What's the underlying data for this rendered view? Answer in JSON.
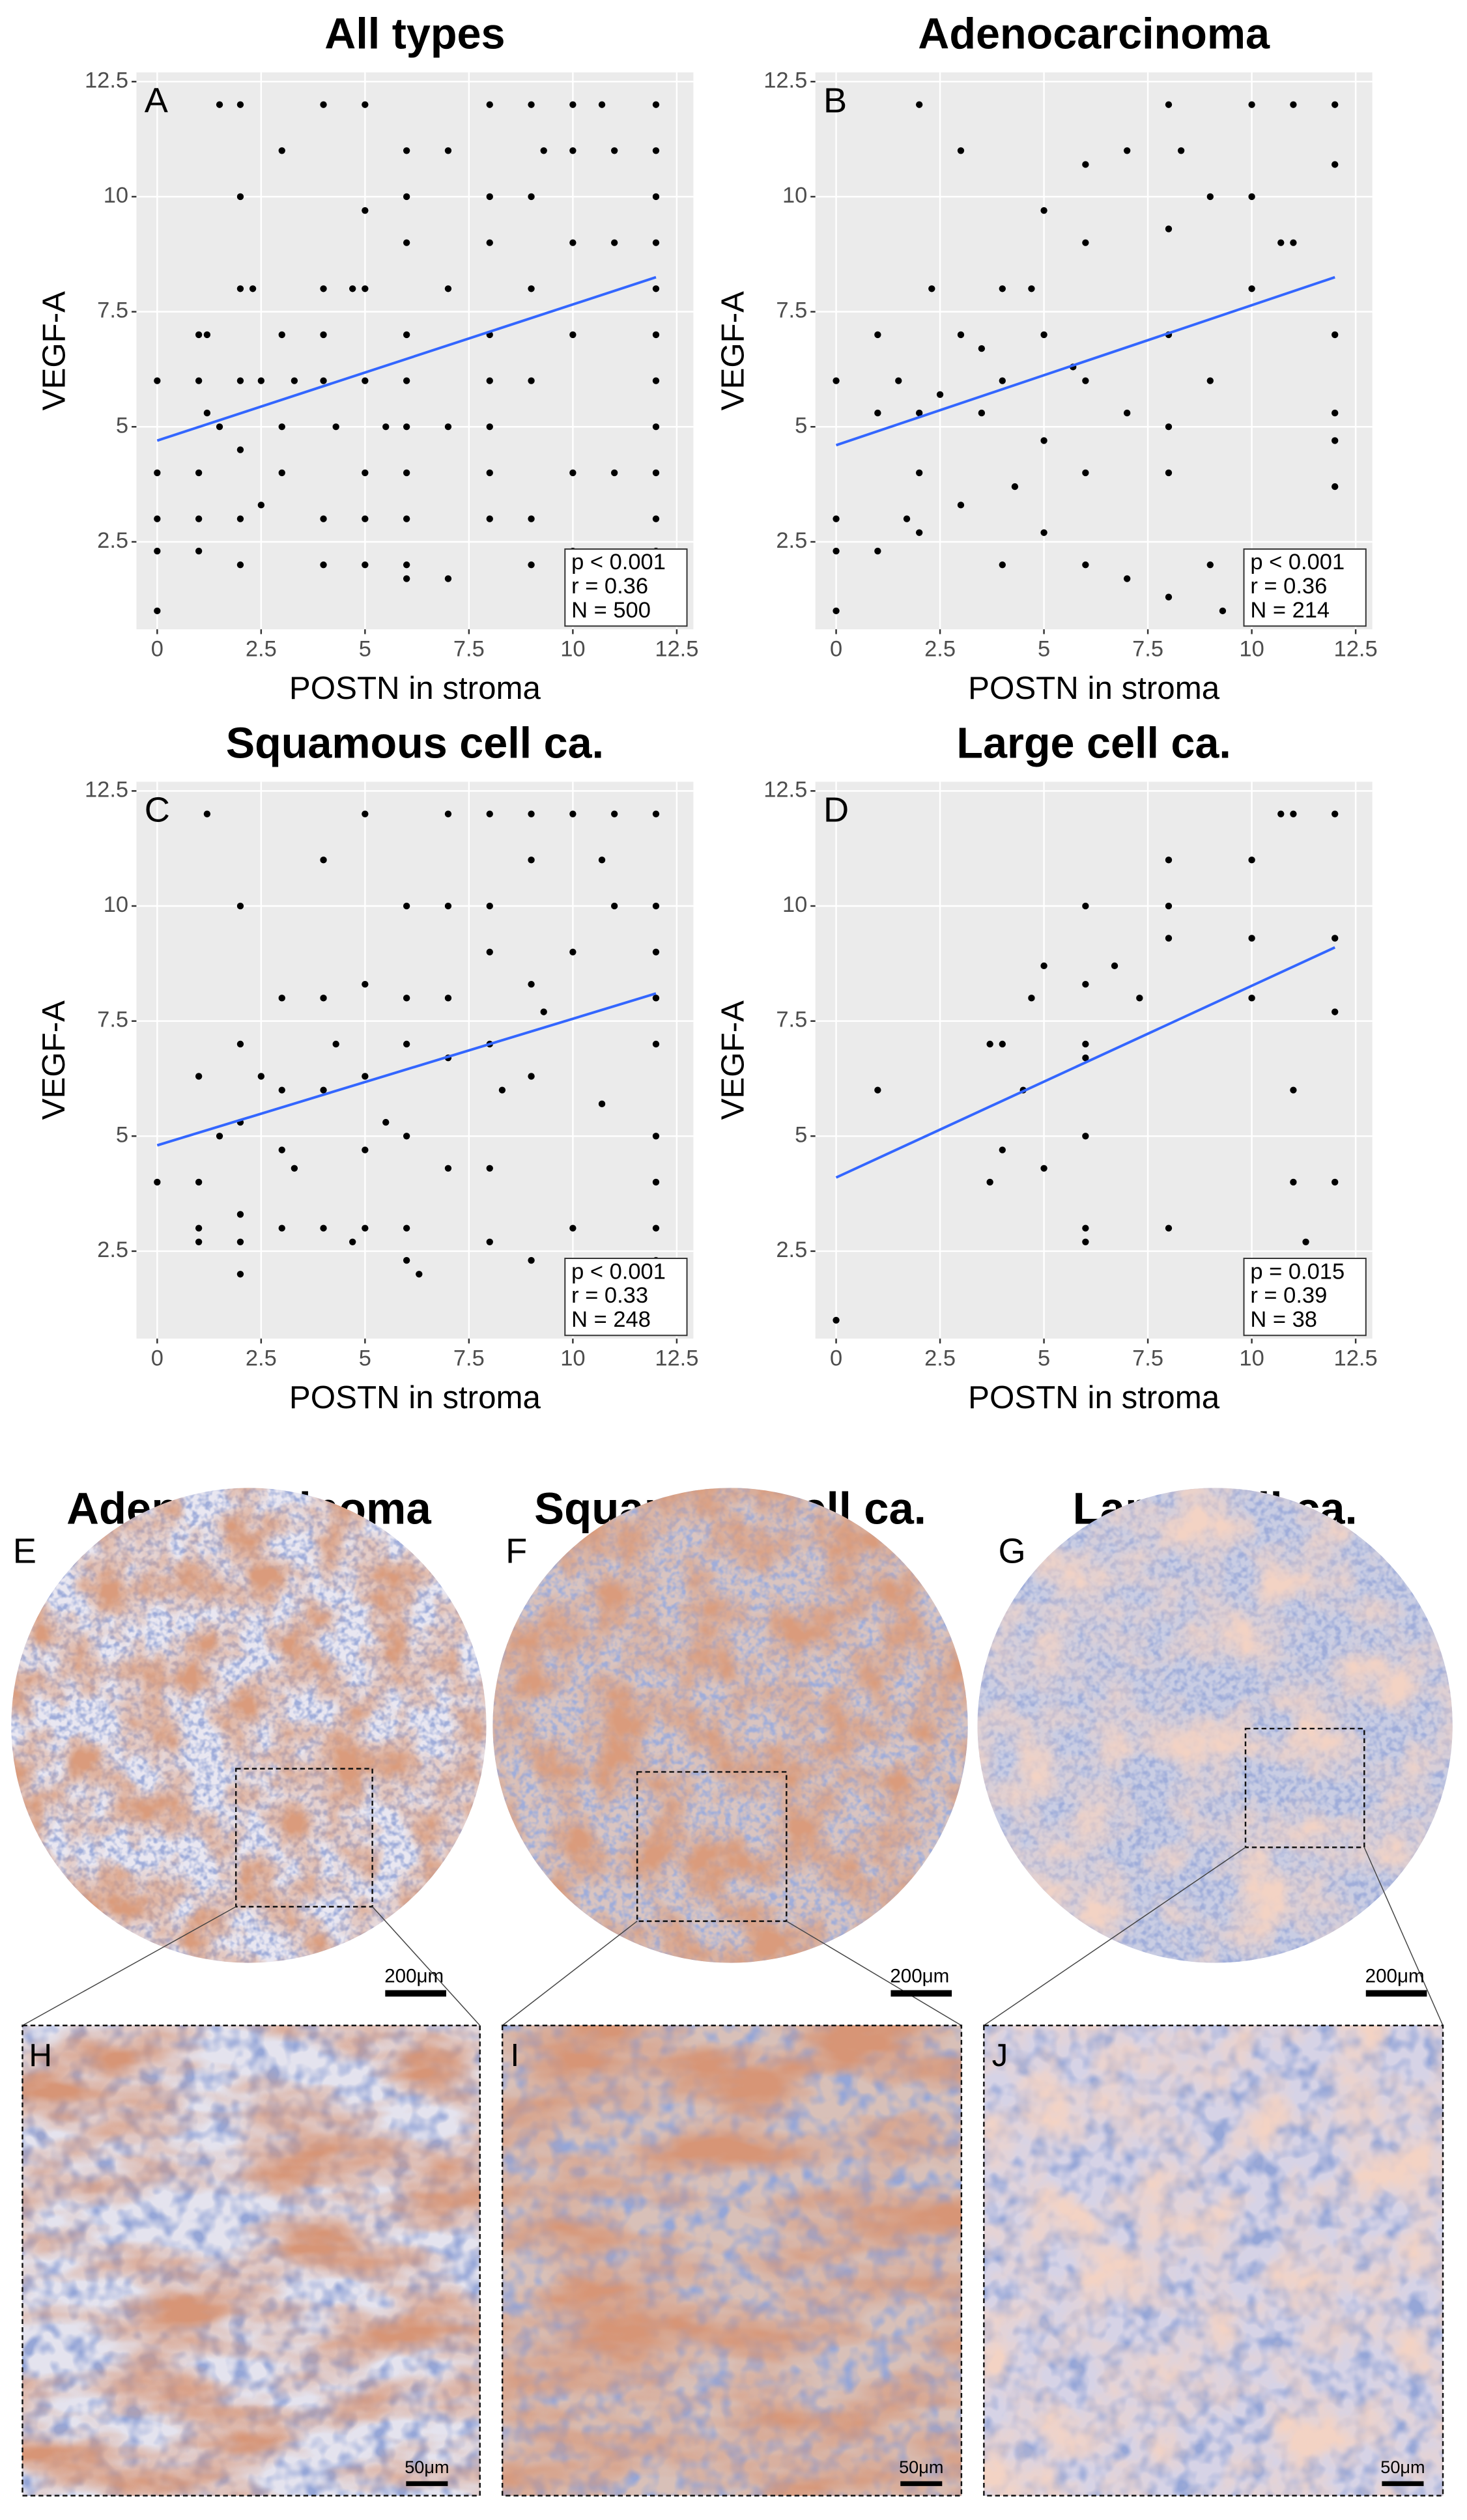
{
  "chart_data": [
    {
      "type": "scatter",
      "title": "All types",
      "panel": "A",
      "xlabel": "POSTN in stroma",
      "ylabel": "VEGF-A",
      "color": "#000000",
      "x": [
        0,
        0,
        0,
        0,
        0,
        1,
        1,
        1,
        1,
        1,
        1.2,
        1.2,
        1.5,
        1.5,
        2,
        2,
        2,
        2,
        2,
        2,
        2,
        2.3,
        2.5,
        2.5,
        3,
        3,
        3,
        3,
        3.3,
        4,
        4,
        4,
        4,
        4,
        4,
        4.3,
        4.7,
        5,
        5,
        5,
        5,
        5,
        5,
        5,
        5.5,
        6,
        6,
        6,
        6,
        6,
        6,
        6,
        6,
        6,
        6,
        7,
        7,
        7,
        7,
        8,
        8,
        8,
        8,
        8,
        8,
        8,
        8,
        9,
        9,
        9,
        9,
        9,
        9,
        9.3,
        10,
        10,
        10,
        10,
        10,
        10,
        10.7,
        11,
        11,
        11,
        12,
        12,
        12,
        12,
        12,
        12,
        12,
        12,
        12,
        12,
        12
      ],
      "values": [
        1,
        2.3,
        3,
        4,
        6,
        7,
        6,
        4,
        2.3,
        3,
        7,
        5.3,
        12,
        5,
        12,
        10,
        8,
        6,
        4.5,
        3,
        2,
        8,
        6,
        3.3,
        11,
        7,
        5,
        4,
        6,
        12,
        8,
        7,
        6,
        3,
        2,
        5,
        8,
        12,
        9.7,
        8,
        6,
        4,
        3,
        2,
        5,
        11,
        10,
        9,
        7,
        6,
        5,
        4,
        3,
        2,
        1.7,
        11,
        8,
        5,
        1.7,
        12,
        10,
        9,
        7,
        6,
        5,
        4,
        3,
        12,
        10,
        8,
        6,
        3,
        2,
        11,
        12,
        11,
        9,
        7,
        4,
        2.3,
        12,
        11,
        9,
        4,
        12,
        11,
        10,
        9,
        8,
        7,
        6,
        5,
        4,
        3,
        2.3
      ],
      "fit": {
        "x": [
          0,
          12
        ],
        "values": [
          4.7,
          8.25
        ]
      },
      "fit_color": "#3366ff",
      "stats": [
        "p < 0.001",
        "r = 0.36",
        "N = 500"
      ],
      "xlim": [
        -0.5,
        12.9
      ],
      "ylim": [
        0.6,
        12.7
      ],
      "xticks": [
        0,
        2.5,
        5,
        7.5,
        10,
        12.5
      ],
      "yticks": [
        2.5,
        5,
        7.5,
        10,
        12.5
      ],
      "grid": true
    },
    {
      "type": "scatter",
      "title": "Adenocarcinoma",
      "panel": "B",
      "xlabel": "POSTN in stroma",
      "ylabel": "VEGF-A",
      "color": "#000000",
      "x": [
        0,
        0,
        0,
        0,
        1,
        1,
        1,
        1.5,
        1.7,
        2,
        2,
        2,
        2,
        2.3,
        2.5,
        3,
        3,
        3,
        3.5,
        3.5,
        4,
        4,
        4,
        4.3,
        4.7,
        5,
        5,
        5,
        5,
        5.7,
        6,
        6,
        6,
        6,
        6,
        7,
        7,
        7,
        8,
        8,
        8,
        8,
        8,
        8,
        8.3,
        9,
        9,
        9,
        9.3,
        10,
        10,
        10,
        10.7,
        11,
        11,
        12,
        12,
        12,
        12,
        12,
        12
      ],
      "values": [
        1,
        2.3,
        3,
        6,
        7,
        5.3,
        2.3,
        6,
        3,
        12,
        5.3,
        4,
        2.7,
        8,
        5.7,
        11,
        7,
        3.3,
        6.7,
        5.3,
        8,
        6,
        2,
        3.7,
        8,
        9.7,
        7,
        4.7,
        2.7,
        6.3,
        10.7,
        9,
        6,
        4,
        2,
        11,
        5.3,
        1.7,
        12,
        9.3,
        7,
        5,
        4,
        1.3,
        11,
        10,
        6,
        2,
        1,
        12,
        8,
        10,
        9,
        12,
        9,
        12,
        10.7,
        7,
        5.3,
        4.7,
        3.7
      ],
      "fit": {
        "x": [
          0,
          12
        ],
        "values": [
          4.6,
          8.25
        ]
      },
      "fit_color": "#3366ff",
      "stats": [
        "p < 0.001",
        "r = 0.36",
        "N = 214"
      ],
      "xlim": [
        -0.5,
        12.9
      ],
      "ylim": [
        0.6,
        12.7
      ],
      "xticks": [
        0,
        2.5,
        5,
        7.5,
        10,
        12.5
      ],
      "yticks": [
        2.5,
        5,
        7.5,
        10,
        12.5
      ],
      "grid": true
    },
    {
      "type": "scatter",
      "title": "Squamous cell ca.",
      "panel": "C",
      "xlabel": "POSTN in stroma",
      "ylabel": "VEGF-A",
      "color": "#000000",
      "x": [
        0,
        1,
        1,
        1,
        1,
        1.2,
        1.5,
        2,
        2,
        2,
        2,
        2,
        2,
        2.5,
        3,
        3,
        3,
        3,
        3.3,
        4,
        4,
        4,
        4,
        4.3,
        4.7,
        5,
        5,
        5,
        5,
        5,
        5.5,
        6,
        6,
        6,
        6,
        6,
        6,
        6.3,
        7,
        7,
        7,
        7,
        7,
        8,
        8,
        8,
        8,
        8,
        8,
        8.3,
        9,
        9,
        9,
        9,
        9,
        9.3,
        10,
        10,
        10,
        10,
        10.7,
        10.7,
        11,
        11,
        12,
        12,
        12,
        12,
        12,
        12,
        12,
        12,
        12
      ],
      "values": [
        4,
        6.3,
        4,
        3,
        2.7,
        12,
        5,
        10,
        7,
        5.3,
        3.3,
        2.7,
        2,
        6.3,
        8,
        6,
        4.7,
        3,
        4.3,
        11,
        8,
        6,
        3,
        7,
        2.7,
        12,
        8.3,
        6.3,
        4.7,
        3,
        5.3,
        10,
        8,
        7,
        5,
        3,
        2.3,
        2,
        12,
        10,
        8,
        6.7,
        4.3,
        12,
        10,
        9,
        7,
        4.3,
        2.7,
        6,
        12,
        11,
        8.3,
        6.3,
        2.3,
        7.7,
        12,
        9,
        3,
        2,
        11,
        5.7,
        12,
        10,
        12,
        10,
        9,
        8,
        7,
        5,
        4,
        3,
        2.3
      ],
      "fit": {
        "x": [
          0,
          12
        ],
        "values": [
          4.8,
          8.1
        ]
      },
      "fit_color": "#3366ff",
      "stats": [
        "p < 0.001",
        "r = 0.33",
        "N = 248"
      ],
      "xlim": [
        -0.5,
        12.9
      ],
      "ylim": [
        0.6,
        12.7
      ],
      "xticks": [
        0,
        2.5,
        5,
        7.5,
        10,
        12.5
      ],
      "yticks": [
        2.5,
        5,
        7.5,
        10,
        12.5
      ],
      "grid": true
    },
    {
      "type": "scatter",
      "title": "Large cell ca.",
      "panel": "D",
      "xlabel": "POSTN in stroma",
      "ylabel": "VEGF-A",
      "color": "#000000",
      "x": [
        0,
        1,
        3.7,
        3.7,
        4,
        4,
        4.5,
        4.7,
        5,
        5,
        6,
        6,
        6,
        6,
        6,
        6,
        6,
        6.7,
        7.3,
        8,
        8,
        8,
        8,
        10,
        10,
        10,
        10.7,
        11,
        11,
        11,
        11.3,
        12,
        12,
        12,
        12
      ],
      "values": [
        1,
        6,
        7,
        4,
        7,
        4.7,
        6,
        8,
        8.7,
        4.3,
        10,
        8.3,
        7,
        6.7,
        5,
        3,
        2.7,
        8.7,
        8,
        11,
        10,
        9.3,
        3,
        11,
        9.3,
        8,
        12,
        12,
        6,
        4,
        2.7,
        12,
        9.3,
        7.7,
        4
      ],
      "fit": {
        "x": [
          0,
          12
        ],
        "values": [
          4.1,
          9.1
        ]
      },
      "fit_color": "#3366ff",
      "stats": [
        "p = 0.015",
        "r = 0.39",
        "N = 38"
      ],
      "xlim": [
        -0.5,
        12.9
      ],
      "ylim": [
        0.6,
        12.7
      ],
      "xticks": [
        0,
        2.5,
        5,
        7.5,
        10,
        12.5
      ],
      "yticks": [
        2.5,
        5,
        7.5,
        10,
        12.5
      ],
      "grid": true
    }
  ],
  "micrographs": {
    "titles": [
      "Adenocarcinoma",
      "Squamous cell ca.",
      "Large cell ca."
    ],
    "overview": [
      {
        "label": "E",
        "scale": "200μm"
      },
      {
        "label": "F",
        "scale": "200μm"
      },
      {
        "label": "G",
        "scale": "200μm"
      }
    ],
    "detail": [
      {
        "label": "H",
        "scale": "50μm"
      },
      {
        "label": "I",
        "scale": "50μm"
      },
      {
        "label": "J",
        "scale": "50μm"
      }
    ]
  }
}
